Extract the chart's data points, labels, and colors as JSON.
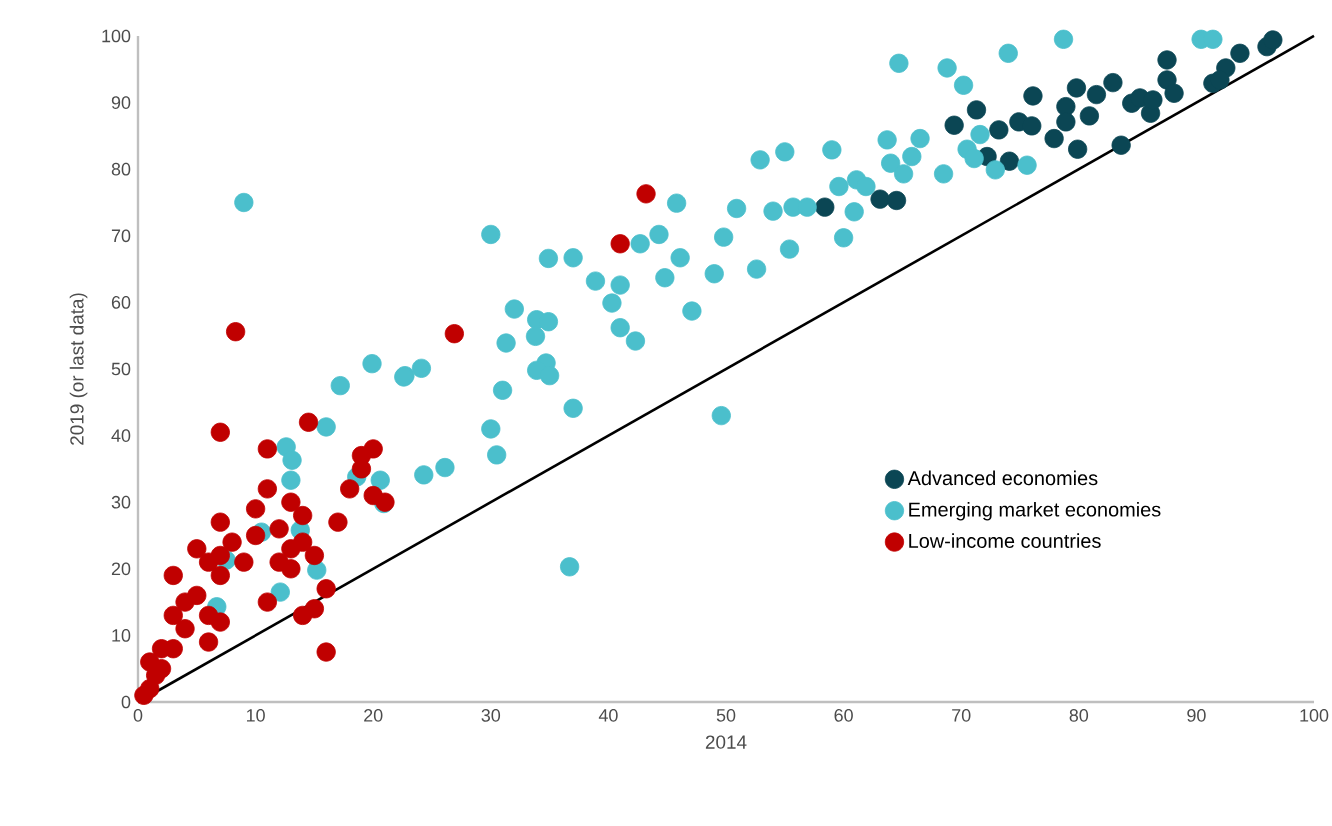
{
  "chart_data": {
    "type": "scatter",
    "xlabel": "2014",
    "ylabel": "2019 (or last data)",
    "xlim": [
      0,
      100
    ],
    "ylim": [
      0,
      100
    ],
    "xticks": [
      0,
      10,
      20,
      30,
      40,
      50,
      60,
      70,
      80,
      90,
      100
    ],
    "yticks": [
      0,
      10,
      20,
      30,
      40,
      50,
      60,
      70,
      80,
      90,
      100
    ],
    "legend": "bottom right",
    "grid": false,
    "series": [
      {
        "name": "Advanced economies",
        "color": "#0b4654",
        "x": [
          58.4,
          63.1,
          64.5,
          69.4,
          71.3,
          73.2,
          74.1,
          72.2,
          74.9,
          76,
          76.1,
          77.9,
          78.9,
          79.8,
          78.9,
          79.9,
          80.9,
          81.5,
          82.9,
          83.6,
          84.5,
          85.2,
          86.1,
          86.3,
          87.5,
          87.5,
          88.1,
          91.4,
          92.5,
          93.7,
          96,
          96.5,
          92
        ],
        "values": [
          74.3,
          75.5,
          75.3,
          86.6,
          88.9,
          85.9,
          81.2,
          81.9,
          87.1,
          86.5,
          91,
          84.6,
          89.4,
          92.2,
          87.1,
          83,
          88,
          91.2,
          93,
          83.6,
          89.9,
          90.7,
          88.4,
          90.4,
          96.4,
          93.4,
          91.4,
          92.9,
          95.2,
          97.4,
          98.4,
          99.4,
          93.4
        ]
      },
      {
        "name": "Emerging market economies",
        "color": "#4bbfcc",
        "x": [
          30,
          34.9,
          37,
          38.9,
          41,
          40.3,
          41,
          42.3,
          32,
          33.9,
          34.9,
          33.8,
          31.3,
          34.7,
          33.9,
          35,
          31,
          37,
          30,
          30.5,
          24.3,
          26.1,
          22.7,
          24.1,
          36.7,
          49.6,
          47.1,
          44.8,
          46.1,
          44.3,
          42.7,
          45.8,
          49,
          49.8,
          50.9,
          52.6,
          52.9,
          55,
          54,
          55.7,
          55.4,
          9,
          17.2,
          19.9,
          22.6,
          12.6,
          13.1,
          13,
          16,
          18.6,
          20.6,
          20.9,
          10.5,
          13.8,
          15.2,
          12.1,
          6.7,
          7.5,
          64.7,
          68.8,
          70.2,
          74,
          78.7,
          90.4,
          91.4,
          59,
          63.7,
          66.5,
          64,
          65.8,
          65.1,
          68.5,
          70.5,
          71.6,
          71.1,
          72.9,
          75.6,
          59.6,
          61.1,
          61.9,
          60.9,
          60,
          56.9
        ],
        "values": [
          70.2,
          66.6,
          66.7,
          63.2,
          62.6,
          59.9,
          56.2,
          54.2,
          59,
          57.4,
          57.1,
          54.9,
          53.9,
          50.9,
          49.8,
          49,
          46.8,
          44.1,
          41,
          37.1,
          34.1,
          35.2,
          49,
          50.1,
          20.3,
          43,
          58.7,
          63.7,
          66.7,
          70.2,
          68.8,
          74.9,
          64.3,
          69.8,
          74.1,
          65,
          81.4,
          82.6,
          73.7,
          74.3,
          68,
          75,
          47.5,
          50.8,
          48.8,
          38.3,
          36.3,
          33.3,
          41.3,
          33.8,
          33.3,
          29.8,
          25.5,
          25.8,
          19.8,
          16.5,
          14.3,
          21.3,
          95.9,
          95.2,
          92.6,
          97.4,
          99.5,
          99.5,
          99.5,
          82.9,
          84.4,
          84.6,
          80.9,
          81.9,
          79.3,
          79.3,
          83,
          85.2,
          81.6,
          79.9,
          80.6,
          77.4,
          78.4,
          77.4,
          73.6,
          69.7,
          74.3
        ]
      },
      {
        "name": "Low-income countries",
        "color": "#c00000",
        "x": [
          0.5,
          1,
          1.5,
          2,
          1,
          2,
          3,
          3,
          3,
          4,
          4,
          5,
          5,
          6,
          6,
          6,
          7,
          7,
          7,
          7,
          8,
          7,
          8.3,
          9,
          10,
          10,
          11,
          11,
          11,
          12,
          12,
          13,
          13,
          13,
          14,
          14,
          14.5,
          14,
          15,
          15,
          16,
          16,
          17,
          18,
          19,
          19,
          20,
          20,
          21,
          26.9,
          41,
          43.2
        ],
        "values": [
          1,
          2,
          4,
          5,
          6,
          8,
          8,
          13,
          19,
          11,
          15,
          16,
          23,
          21,
          13,
          9,
          12,
          19,
          22,
          27,
          24,
          40.5,
          55.6,
          21,
          29,
          25,
          32,
          38,
          15,
          26,
          21,
          20,
          23,
          30,
          28,
          13,
          42,
          24,
          22,
          14,
          7.5,
          17,
          27,
          32,
          35,
          37,
          38,
          31,
          30,
          55.3,
          68.8,
          76.3
        ]
      },
      {
        "type": "line",
        "color": "#000000",
        "marker": "none",
        "x": [
          0,
          100
        ],
        "values": [
          0,
          100
        ]
      }
    ]
  }
}
